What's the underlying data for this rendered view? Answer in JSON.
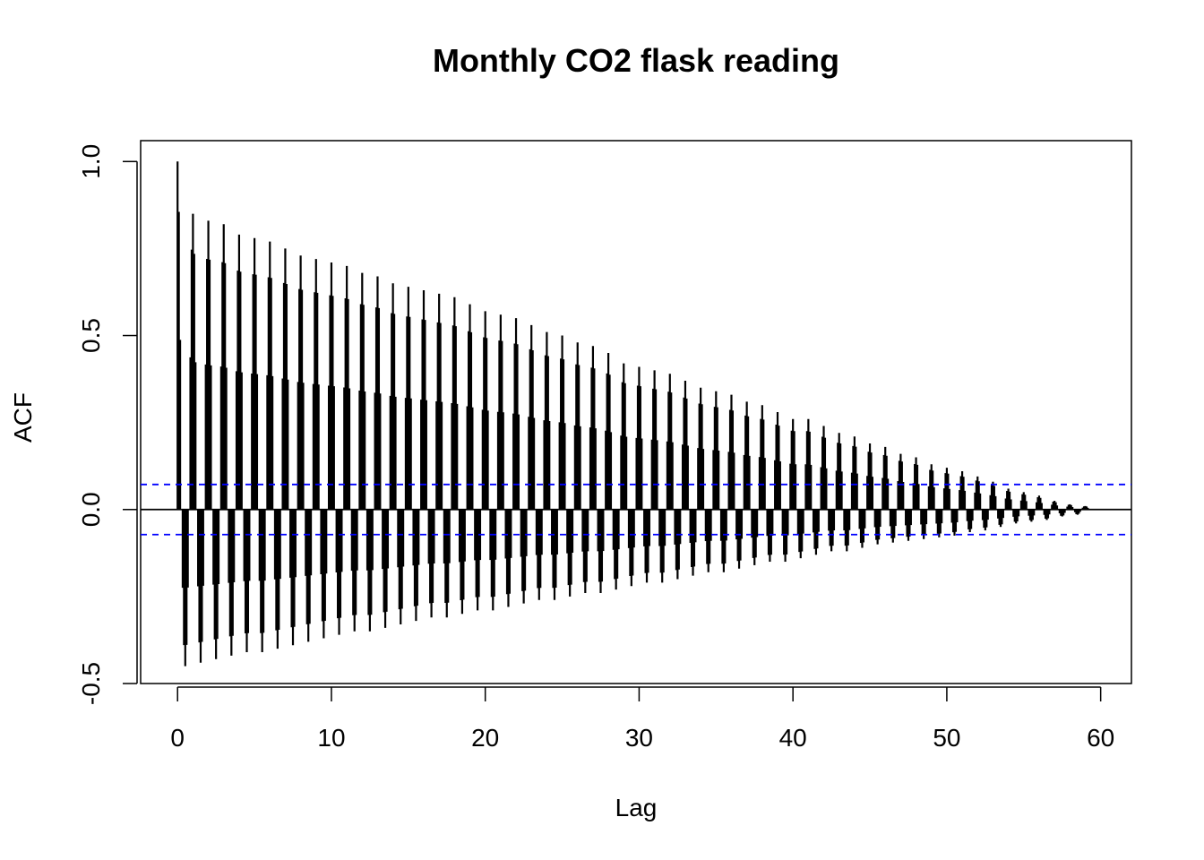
{
  "chart_data": {
    "type": "bar",
    "title": "Monthly CO2 flask reading",
    "xlabel": "Lag",
    "ylabel": "ACF",
    "xlim": [
      -2.4,
      62.0
    ],
    "ylim": [
      -0.5,
      1.06
    ],
    "x_ticks": [
      0,
      10,
      20,
      30,
      40,
      50,
      60
    ],
    "x_tick_labels": [
      "0",
      "10",
      "20",
      "30",
      "40",
      "50",
      "60"
    ],
    "y_ticks": [
      -0.5,
      0.0,
      0.5,
      1.0
    ],
    "y_tick_labels": [
      "-0.5",
      "0.0",
      "0.5",
      "1.0"
    ],
    "lag_step": 0.0833333,
    "max_lag": 59.25,
    "confidence_limit": 0.072,
    "zero_line": 0.0,
    "seasonal_peaks_x": [
      0,
      1,
      2,
      3,
      4,
      5,
      6,
      7,
      8,
      9,
      10,
      11,
      12,
      13,
      14,
      15,
      16,
      17,
      18,
      19,
      20,
      21,
      22,
      23,
      24,
      25,
      26,
      27,
      28,
      29,
      30,
      31,
      32,
      33,
      34,
      35,
      36,
      37,
      38,
      39,
      40,
      41,
      42,
      43,
      44,
      45,
      46,
      47,
      48,
      49,
      50,
      51,
      52,
      53,
      54,
      55,
      56,
      57,
      58,
      59
    ],
    "seasonal_peaks_y": [
      1.0,
      0.85,
      0.83,
      0.82,
      0.79,
      0.78,
      0.77,
      0.75,
      0.73,
      0.72,
      0.71,
      0.7,
      0.68,
      0.67,
      0.65,
      0.64,
      0.63,
      0.62,
      0.61,
      0.59,
      0.57,
      0.56,
      0.55,
      0.53,
      0.51,
      0.5,
      0.48,
      0.47,
      0.45,
      0.42,
      0.41,
      0.4,
      0.39,
      0.37,
      0.35,
      0.34,
      0.33,
      0.31,
      0.3,
      0.28,
      0.26,
      0.26,
      0.24,
      0.22,
      0.21,
      0.19,
      0.18,
      0.16,
      0.15,
      0.13,
      0.12,
      0.11,
      0.095,
      0.08,
      0.06,
      0.05,
      0.04,
      0.025,
      0.015,
      0.01
    ],
    "seasonal_troughs_x": [
      0.5,
      1.5,
      2.5,
      3.5,
      4.5,
      5.5,
      6.5,
      7.5,
      8.5,
      9.5,
      10.5,
      11.5,
      12.5,
      13.5,
      14.5,
      15.5,
      16.5,
      17.5,
      18.5,
      19.5,
      20.5,
      21.5,
      22.5,
      23.5,
      24.5,
      25.5,
      26.5,
      27.5,
      28.5,
      29.5,
      30.5,
      31.5,
      32.5,
      33.5,
      34.5,
      35.5,
      36.5,
      37.5,
      38.5,
      39.5,
      40.5,
      41.5,
      42.5,
      43.5,
      44.5,
      45.5,
      46.5,
      47.5,
      48.5,
      49.5,
      50.5,
      51.5,
      52.5,
      53.5,
      54.5,
      55.5,
      56.5,
      57.5,
      58.5,
      59.25
    ],
    "seasonal_troughs_y": [
      -0.45,
      -0.44,
      -0.43,
      -0.42,
      -0.41,
      -0.41,
      -0.4,
      -0.39,
      -0.38,
      -0.37,
      -0.36,
      -0.35,
      -0.35,
      -0.34,
      -0.33,
      -0.32,
      -0.31,
      -0.31,
      -0.3,
      -0.29,
      -0.29,
      -0.28,
      -0.27,
      -0.26,
      -0.26,
      -0.25,
      -0.24,
      -0.24,
      -0.23,
      -0.22,
      -0.21,
      -0.21,
      -0.2,
      -0.19,
      -0.18,
      -0.18,
      -0.17,
      -0.16,
      -0.15,
      -0.15,
      -0.14,
      -0.13,
      -0.12,
      -0.12,
      -0.11,
      -0.1,
      -0.095,
      -0.09,
      -0.085,
      -0.08,
      -0.075,
      -0.065,
      -0.06,
      -0.05,
      -0.04,
      -0.035,
      -0.03,
      -0.02,
      -0.015,
      -0.005
    ],
    "colors": {
      "bars": "#000000",
      "confidence_lines": "#0000ff",
      "axes": "#000000"
    }
  }
}
